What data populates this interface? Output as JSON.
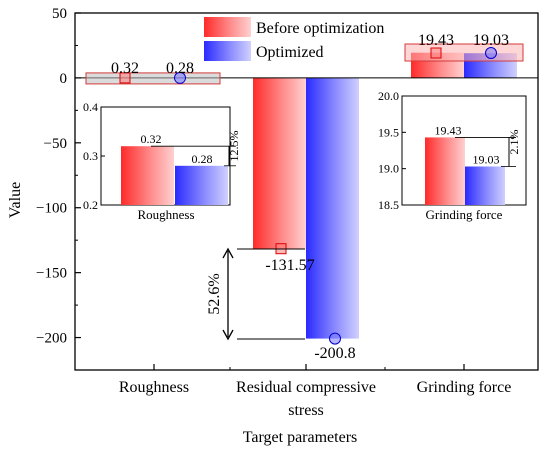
{
  "chart_data": {
    "type": "bar",
    "xlabel": "Target parameters",
    "ylabel": "Value",
    "ylim": [
      -225,
      50
    ],
    "yticks": [
      50,
      0,
      -50,
      -100,
      -150,
      -200
    ],
    "categories": [
      "Roughness",
      "Residual compressive stress",
      "Grinding force"
    ],
    "category_label_lines": [
      [
        "Roughness"
      ],
      [
        "Residual compressive",
        "stress"
      ],
      [
        "Grinding force"
      ]
    ],
    "series": [
      {
        "name": "Before optimization",
        "values": [
          0.32,
          -131.57,
          19.43
        ],
        "color": "#ff3b3b"
      },
      {
        "name": "Optimized",
        "values": [
          0.28,
          -200.8,
          19.03
        ],
        "color": "#3b3bff"
      }
    ],
    "data_labels": {
      "before": [
        "0.32",
        "-131.57",
        "19.43"
      ],
      "optimized": [
        "0.28",
        "-200.8",
        "19.03"
      ]
    },
    "legend": {
      "placement": "top-center",
      "entries": [
        "Before optimization",
        "Optimized"
      ]
    },
    "annotations": {
      "residual_stress_change": "52.6%"
    },
    "insets": [
      {
        "title": "Roughness",
        "ylim": [
          0.2,
          0.4
        ],
        "yticks": [
          "0.4",
          "0.3",
          "0.2"
        ],
        "values": [
          0.32,
          0.28
        ],
        "labels": [
          "0.32",
          "0.28"
        ],
        "change": "12.5%"
      },
      {
        "title": "Grinding force",
        "ylim": [
          18.5,
          20.0
        ],
        "yticks": [
          "20.0",
          "19.5",
          "19.0",
          "18.5"
        ],
        "values": [
          19.43,
          19.03
        ],
        "labels": [
          "19.43",
          "19.03"
        ],
        "change": "2.1%"
      }
    ],
    "colors": {
      "before": "#ff3b3b",
      "optimized": "#3b3bff"
    }
  }
}
